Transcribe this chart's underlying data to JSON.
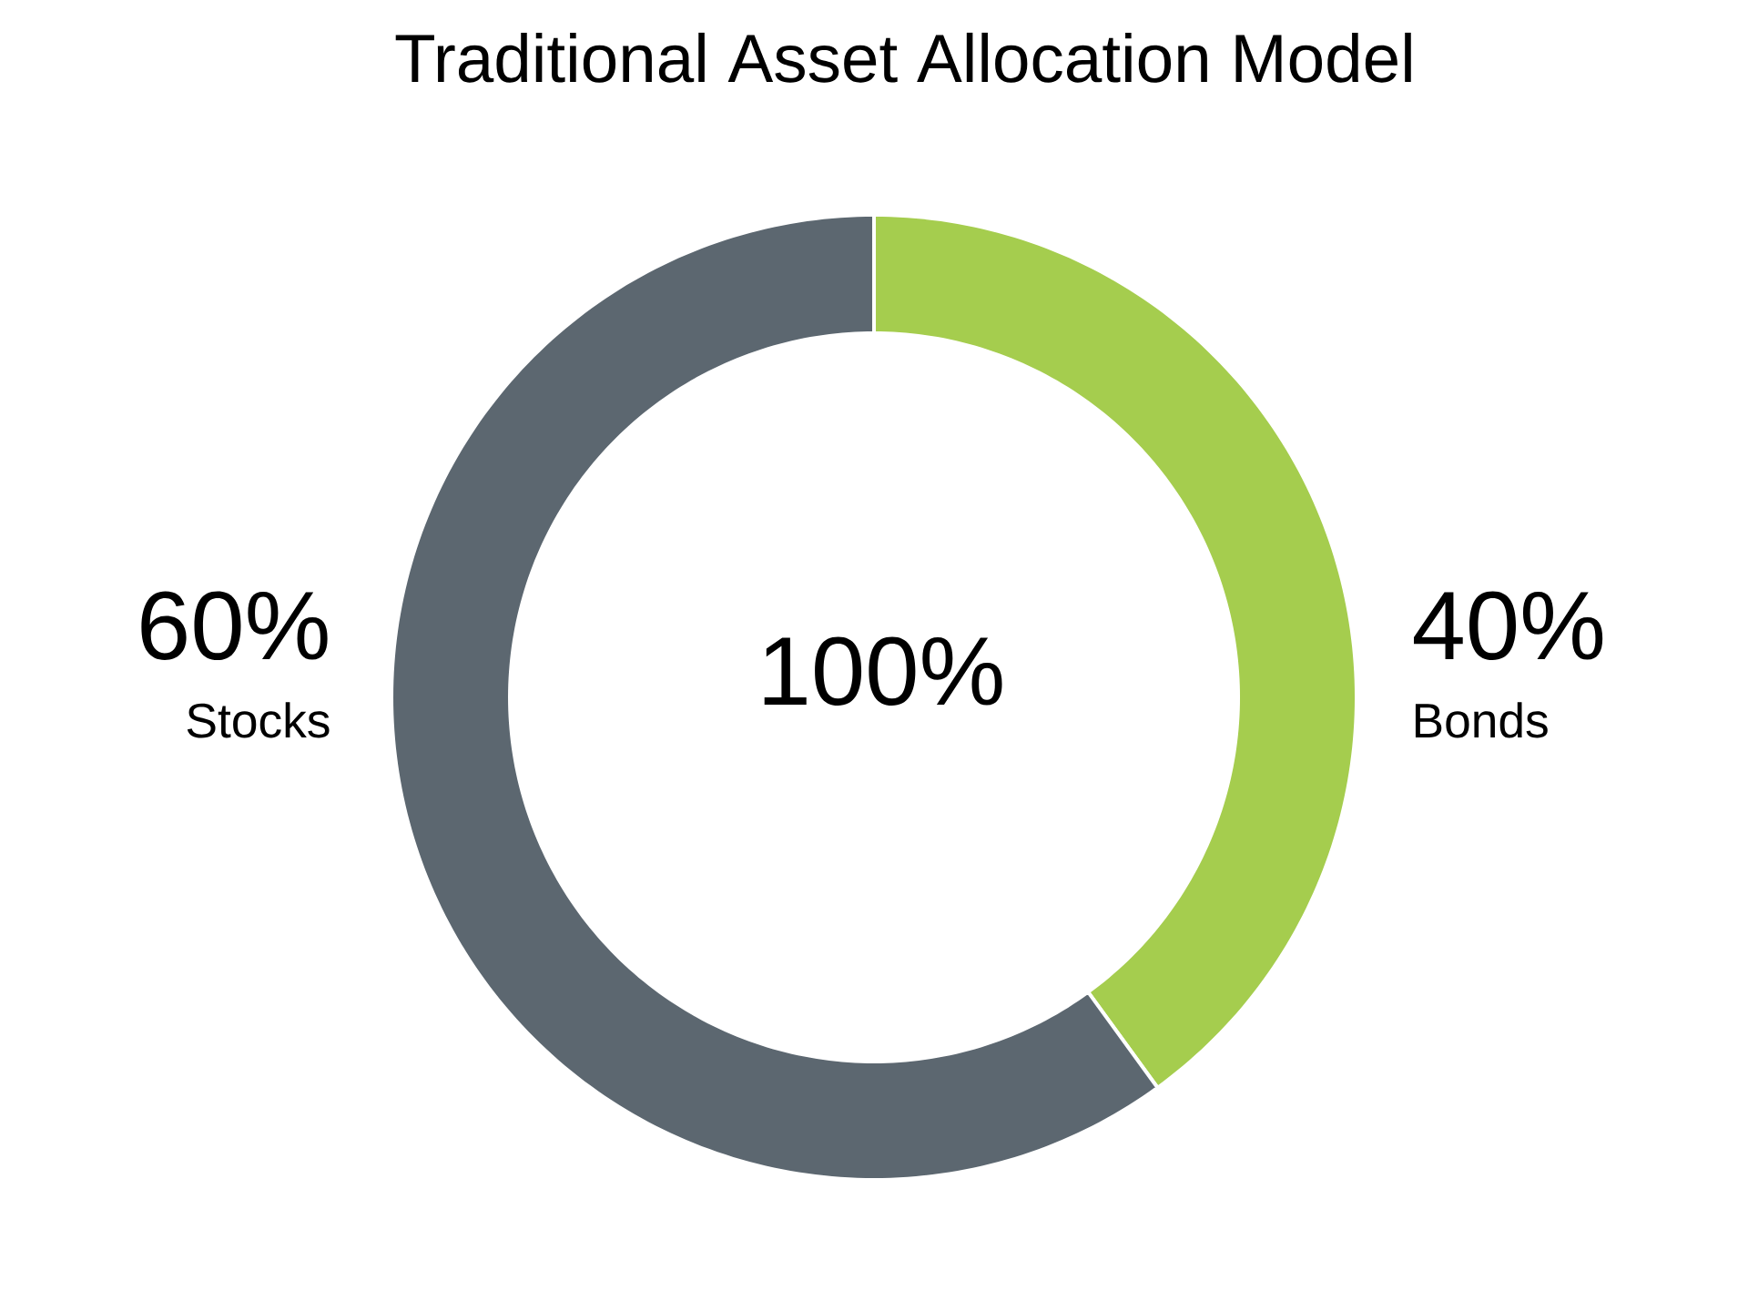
{
  "chart_data": {
    "type": "donut",
    "title": "Traditional Asset Allocation Model",
    "categories": [
      "Bonds",
      "Stocks"
    ],
    "values": [
      40,
      60
    ],
    "colors": [
      "#a5cd4e",
      "#5c6770"
    ],
    "value_labels": [
      "40%",
      "60%"
    ],
    "annotations": [
      "100%"
    ]
  }
}
